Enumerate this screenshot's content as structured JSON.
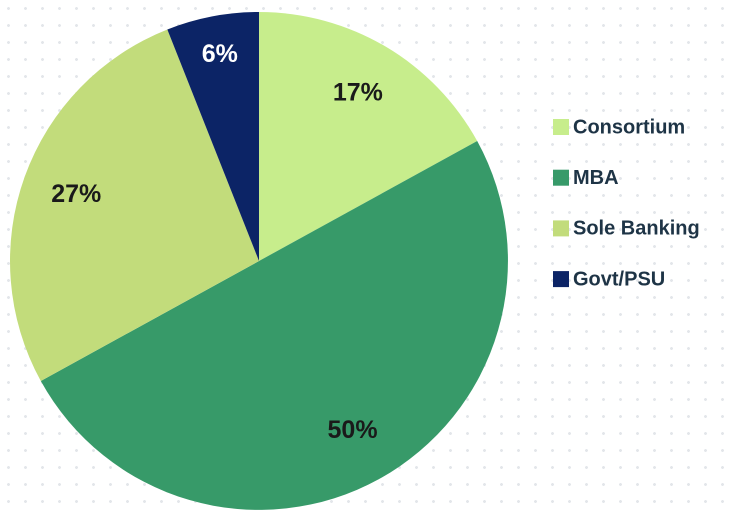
{
  "chart_data": {
    "type": "pie",
    "categories": [
      "Consortium",
      "MBA",
      "Sole Banking",
      "Govt/PSU"
    ],
    "values": [
      17,
      50,
      27,
      6
    ],
    "value_labels": [
      "17%",
      "50%",
      "27%",
      "6%"
    ],
    "colors": [
      "#c7ed8c",
      "#379a69",
      "#c2dc7b",
      "#0c2466"
    ],
    "legend": "right"
  }
}
